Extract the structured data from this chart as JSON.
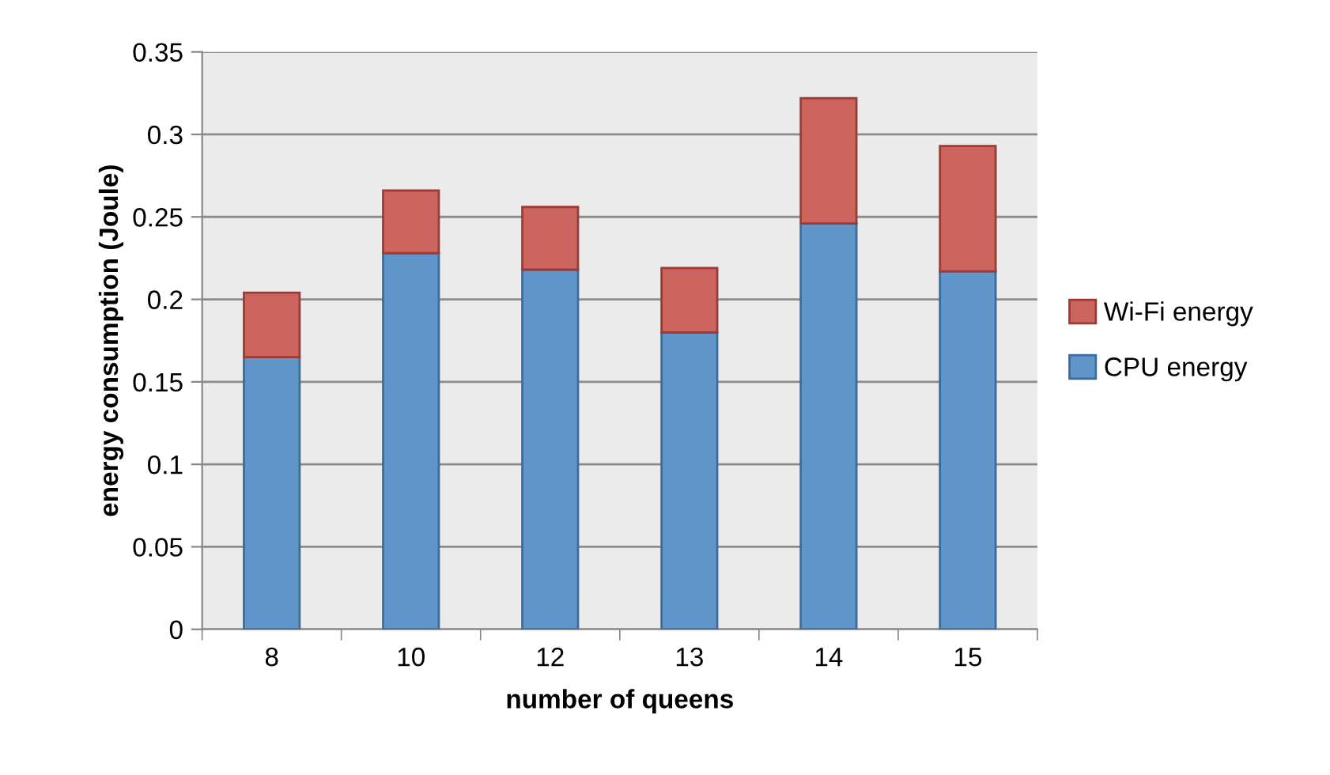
{
  "chart_data": {
    "type": "bar",
    "stacked": true,
    "xlabel": "number of queens",
    "ylabel": "energy consumption (Joule)",
    "categories": [
      "8",
      "10",
      "12",
      "13",
      "14",
      "15"
    ],
    "series": [
      {
        "name": "CPU energy",
        "color": "#6096c9",
        "values": [
          0.165,
          0.228,
          0.218,
          0.18,
          0.246,
          0.217
        ]
      },
      {
        "name": "Wi-Fi energy",
        "color": "#cd655f",
        "values": [
          0.039,
          0.038,
          0.038,
          0.039,
          0.076,
          0.076
        ]
      }
    ],
    "ylim": [
      0,
      0.35
    ],
    "yticks": [
      0,
      0.05,
      0.1,
      0.15,
      0.2,
      0.25,
      0.3,
      0.35
    ],
    "grid": "y",
    "legend": "right"
  }
}
